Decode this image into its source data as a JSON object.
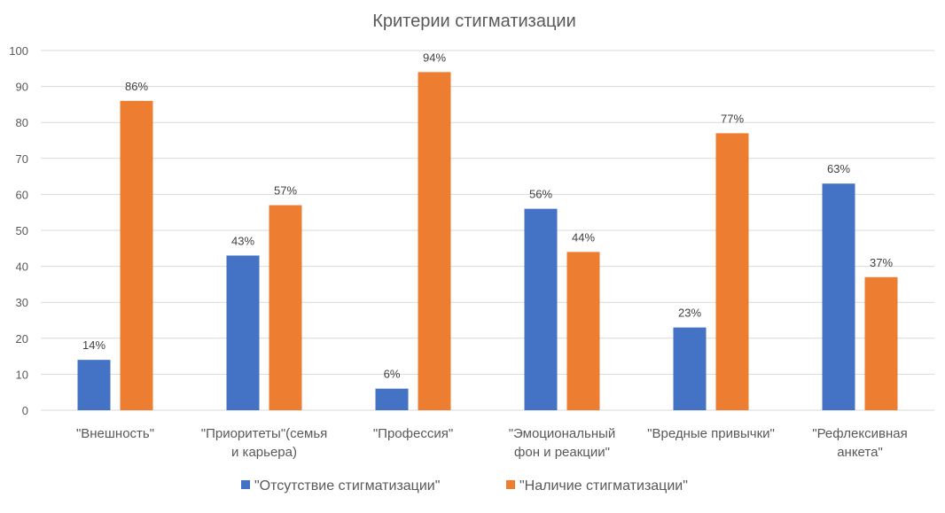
{
  "chart_data": {
    "type": "bar",
    "title": "Критерии стигматизации",
    "categories": [
      [
        "\"Внешность\""
      ],
      [
        "\"Приоритеты\"(семья",
        "и карьера)"
      ],
      [
        "\"Профессия\""
      ],
      [
        "\"Эмоциональный",
        "фон и реакции\""
      ],
      [
        "\"Вредные привычки\""
      ],
      [
        "\"Рефлексивная",
        "анкета\""
      ]
    ],
    "series": [
      {
        "name": "\"Отсутствие стигматизации\"",
        "values": [
          14,
          43,
          6,
          56,
          23,
          63
        ],
        "labels": [
          "14%",
          "43%",
          "6%",
          "56%",
          "23%",
          "63%"
        ]
      },
      {
        "name": "\"Наличие стигматизации\"",
        "values": [
          86,
          57,
          94,
          44,
          77,
          37
        ],
        "labels": [
          "86%",
          "57%",
          "94%",
          "44%",
          "77%",
          "37%"
        ]
      }
    ],
    "ylim": [
      0,
      100
    ],
    "yticks": [
      0,
      10,
      20,
      30,
      40,
      50,
      60,
      70,
      80,
      90,
      100
    ],
    "grid": true,
    "legend": "bottom"
  },
  "colors": {
    "series": [
      "#4472c4",
      "#ed7d31"
    ],
    "grid": "#d9d9d9",
    "text": "#595959"
  }
}
